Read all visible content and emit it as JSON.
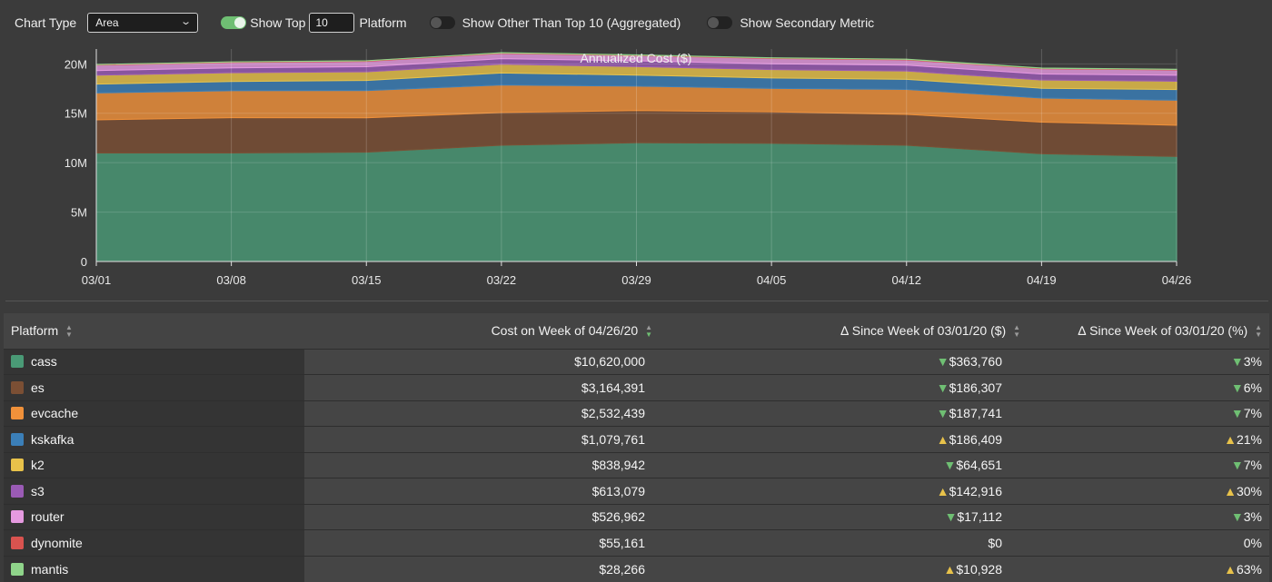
{
  "toolbar": {
    "chart_type_label": "Chart Type",
    "chart_type_value": "Area",
    "show_top_label": "Show Top",
    "show_top_value": "10",
    "platform_label": "Platform",
    "show_other_label": "Show Other Than Top 10 (Aggregated)",
    "show_secondary_label": "Show Secondary Metric",
    "toggle_show_top": true,
    "toggle_show_other": false,
    "toggle_show_secondary": false
  },
  "chart_data": {
    "type": "area",
    "stacked": true,
    "title": "Annualized Cost ($)",
    "xlabel": "",
    "ylabel": "",
    "categories": [
      "03/01",
      "03/08",
      "03/15",
      "03/22",
      "03/29",
      "04/05",
      "04/12",
      "04/19",
      "04/26"
    ],
    "y_ticks": [
      "0",
      "5M",
      "10M",
      "15M",
      "20M"
    ],
    "ylim": [
      0,
      21500000
    ],
    "grid": true,
    "series": [
      {
        "name": "cass",
        "color": "#4a9a76",
        "values": [
          10984000,
          10980000,
          11060000,
          11760000,
          12010000,
          11960000,
          11760000,
          10900000,
          10620000
        ]
      },
      {
        "name": "es",
        "color": "#7b4f34",
        "values": [
          3350698,
          3570000,
          3480000,
          3320000,
          3260000,
          3190000,
          3130000,
          3200000,
          3164391
        ]
      },
      {
        "name": "evcache",
        "color": "#f0913a",
        "values": [
          2720180,
          2740000,
          2760000,
          2780000,
          2470000,
          2370000,
          2520000,
          2440000,
          2532439
        ]
      },
      {
        "name": "kskafka",
        "color": "#3b7fb8",
        "values": [
          893352,
          920000,
          1020000,
          1220000,
          1120000,
          1050000,
          1020000,
          990000,
          1079761
        ]
      },
      {
        "name": "k2",
        "color": "#e8c24a",
        "values": [
          903593,
          890000,
          870000,
          880000,
          860000,
          850000,
          840000,
          830000,
          838942
        ]
      },
      {
        "name": "s3",
        "color": "#9a5bb5",
        "values": [
          470163,
          490000,
          520000,
          560000,
          580000,
          590000,
          600000,
          610000,
          613079
        ]
      },
      {
        "name": "router",
        "color": "#e59ae0",
        "values": [
          544074,
          540000,
          535000,
          532000,
          530000,
          529000,
          528000,
          527000,
          526962
        ]
      },
      {
        "name": "dynomite",
        "color": "#d9534f",
        "values": [
          55161,
          55161,
          55161,
          55161,
          55161,
          55161,
          55161,
          55161,
          55161
        ]
      },
      {
        "name": "mantis",
        "color": "#8fd48a",
        "values": [
          17338,
          18000,
          20000,
          22000,
          24000,
          25000,
          26000,
          27000,
          28266
        ]
      }
    ]
  },
  "table": {
    "headers": [
      "Platform",
      "Cost on Week of 04/26/20",
      "∆ Since Week of 03/01/20 ($)",
      "∆ Since Week of 03/01/20 (%)"
    ],
    "rows": [
      {
        "name": "cass",
        "color": "#4a9a76",
        "cost": "$10,620,000",
        "delta": "$363,760",
        "pct": "3%",
        "dir": "down"
      },
      {
        "name": "es",
        "color": "#7b4f34",
        "cost": "$3,164,391",
        "delta": "$186,307",
        "pct": "6%",
        "dir": "down"
      },
      {
        "name": "evcache",
        "color": "#f0913a",
        "cost": "$2,532,439",
        "delta": "$187,741",
        "pct": "7%",
        "dir": "down"
      },
      {
        "name": "kskafka",
        "color": "#3b7fb8",
        "cost": "$1,079,761",
        "delta": "$186,409",
        "pct": "21%",
        "dir": "up"
      },
      {
        "name": "k2",
        "color": "#e8c24a",
        "cost": "$838,942",
        "delta": "$64,651",
        "pct": "7%",
        "dir": "down"
      },
      {
        "name": "s3",
        "color": "#9a5bb5",
        "cost": "$613,079",
        "delta": "$142,916",
        "pct": "30%",
        "dir": "up"
      },
      {
        "name": "router",
        "color": "#e59ae0",
        "cost": "$526,962",
        "delta": "$17,112",
        "pct": "3%",
        "dir": "down"
      },
      {
        "name": "dynomite",
        "color": "#d9534f",
        "cost": "$55,161",
        "delta": "$0",
        "pct": "0%",
        "dir": "none"
      },
      {
        "name": "mantis",
        "color": "#8fd48a",
        "cost": "$28,266",
        "delta": "$10,928",
        "pct": "63%",
        "dir": "up"
      }
    ]
  }
}
